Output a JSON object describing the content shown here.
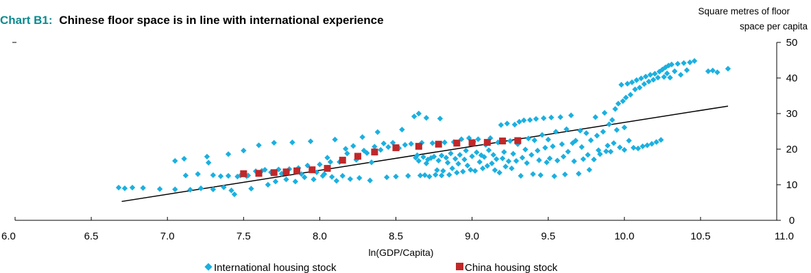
{
  "chart_data": {
    "type": "scatter",
    "title_prefix": "Chart B1:",
    "title": "Chinese floor space is in line with international experience",
    "ylabel_lines": [
      "Square metres of floor",
      "space per capita"
    ],
    "xlabel": "ln(GDP/Capita)",
    "xlim": [
      6.0,
      11.0
    ],
    "ylim": [
      0,
      50
    ],
    "x_ticks": [
      "6.0",
      "6.5",
      "7.0",
      "7.5",
      "8.0",
      "8.5",
      "9.0",
      "9.5",
      "10.0",
      "10.5",
      "11.0"
    ],
    "y_ticks": [
      "0",
      "10",
      "20",
      "30",
      "40",
      "50"
    ],
    "y_axis_side": "right",
    "grid": false,
    "legend_position": "bottom",
    "series": [
      {
        "name": "International housing stock",
        "marker": "diamond",
        "color": "#1bb0e0",
        "points": [
          [
            6.68,
            9.2
          ],
          [
            6.72,
            9.0
          ],
          [
            6.77,
            9.2
          ],
          [
            6.84,
            9.1
          ],
          [
            6.95,
            8.8
          ],
          [
            7.05,
            8.7
          ],
          [
            7.05,
            16.7
          ],
          [
            7.11,
            17.3
          ],
          [
            7.12,
            12.6
          ],
          [
            7.15,
            8.6
          ],
          [
            7.2,
            13.0
          ],
          [
            7.22,
            9.0
          ],
          [
            7.26,
            17.9
          ],
          [
            7.27,
            16.2
          ],
          [
            7.3,
            12.7
          ],
          [
            7.3,
            8.7
          ],
          [
            7.35,
            12.4
          ],
          [
            7.37,
            9.3
          ],
          [
            7.4,
            18.6
          ],
          [
            7.4,
            12.5
          ],
          [
            7.42,
            8.4
          ],
          [
            7.44,
            7.3
          ],
          [
            7.46,
            12.3
          ],
          [
            7.48,
            12.6
          ],
          [
            7.5,
            19.6
          ],
          [
            7.52,
            12.4
          ],
          [
            7.53,
            12.6
          ],
          [
            7.55,
            8.9
          ],
          [
            7.58,
            13.8
          ],
          [
            7.6,
            21.1
          ],
          [
            7.62,
            13.9
          ],
          [
            7.64,
            14.2
          ],
          [
            7.66,
            10.0
          ],
          [
            7.68,
            13.5
          ],
          [
            7.7,
            21.8
          ],
          [
            7.71,
            10.9
          ],
          [
            7.73,
            14.3
          ],
          [
            7.75,
            13.1
          ],
          [
            7.78,
            11.5
          ],
          [
            7.8,
            14.4
          ],
          [
            7.82,
            21.9
          ],
          [
            7.84,
            10.9
          ],
          [
            7.86,
            14.7
          ],
          [
            7.88,
            13.0
          ],
          [
            7.9,
            12.1
          ],
          [
            7.92,
            15.4
          ],
          [
            7.94,
            22.2
          ],
          [
            7.96,
            11.5
          ],
          [
            7.98,
            13.5
          ],
          [
            8.0,
            15.7
          ],
          [
            8.02,
            12.5
          ],
          [
            8.03,
            13.0
          ],
          [
            8.05,
            17.6
          ],
          [
            8.07,
            16.4
          ],
          [
            8.08,
            12.2
          ],
          [
            8.1,
            22.7
          ],
          [
            8.11,
            11.1
          ],
          [
            8.13,
            16.4
          ],
          [
            8.15,
            12.5
          ],
          [
            8.17,
            20.1
          ],
          [
            8.18,
            18.8
          ],
          [
            8.2,
            11.6
          ],
          [
            8.22,
            20.9
          ],
          [
            8.24,
            17.0
          ],
          [
            8.26,
            11.9
          ],
          [
            8.28,
            23.4
          ],
          [
            8.29,
            19.6
          ],
          [
            8.31,
            18.9
          ],
          [
            8.33,
            11.2
          ],
          [
            8.34,
            16.3
          ],
          [
            8.36,
            20.7
          ],
          [
            8.38,
            24.8
          ],
          [
            8.4,
            19.8
          ],
          [
            8.42,
            21.6
          ],
          [
            8.44,
            12.1
          ],
          [
            8.45,
            20.6
          ],
          [
            8.48,
            21.8
          ],
          [
            8.5,
            12.3
          ],
          [
            8.52,
            20.3
          ],
          [
            8.54,
            25.5
          ],
          [
            8.56,
            21.2
          ],
          [
            8.58,
            12.5
          ],
          [
            8.6,
            21.5
          ],
          [
            8.62,
            29.2
          ],
          [
            8.63,
            17.6
          ],
          [
            8.64,
            18.3
          ],
          [
            8.65,
            30.0
          ],
          [
            8.65,
            16.7
          ],
          [
            8.66,
            12.6
          ],
          [
            8.67,
            21.8
          ],
          [
            8.68,
            17.8
          ],
          [
            8.69,
            12.7
          ],
          [
            8.7,
            28.8
          ],
          [
            8.7,
            16.0
          ],
          [
            8.71,
            17.1
          ],
          [
            8.72,
            12.3
          ],
          [
            8.73,
            17.5
          ],
          [
            8.74,
            21.7
          ],
          [
            8.75,
            17.9
          ],
          [
            8.76,
            12.8
          ],
          [
            8.77,
            14.1
          ],
          [
            8.78,
            16.8
          ],
          [
            8.79,
            28.6
          ],
          [
            8.8,
            18.2
          ],
          [
            8.8,
            12.6
          ],
          [
            8.81,
            13.9
          ],
          [
            8.82,
            21.9
          ],
          [
            8.83,
            17.6
          ],
          [
            8.84,
            16.2
          ],
          [
            8.85,
            12.8
          ],
          [
            8.86,
            18.8
          ],
          [
            8.87,
            14.6
          ],
          [
            8.88,
            22.0
          ],
          [
            8.89,
            17.3
          ],
          [
            8.9,
            13.4
          ],
          [
            8.91,
            15.9
          ],
          [
            8.92,
            18.4
          ],
          [
            8.93,
            22.8
          ],
          [
            8.94,
            13.7
          ],
          [
            8.95,
            17.1
          ],
          [
            8.96,
            19.6
          ],
          [
            8.97,
            15.4
          ],
          [
            8.98,
            23.1
          ],
          [
            8.99,
            14.2
          ],
          [
            9.0,
            18.0
          ],
          [
            9.01,
            22.1
          ],
          [
            9.02,
            13.9
          ],
          [
            9.03,
            19.1
          ],
          [
            9.04,
            22.8
          ],
          [
            9.05,
            16.4
          ],
          [
            9.06,
            18.3
          ],
          [
            9.07,
            14.6
          ],
          [
            9.08,
            17.8
          ],
          [
            9.09,
            21.2
          ],
          [
            9.1,
            15.3
          ],
          [
            9.11,
            19.7
          ],
          [
            9.12,
            23.1
          ],
          [
            9.13,
            16.0
          ],
          [
            9.14,
            18.4
          ],
          [
            9.15,
            14.1
          ],
          [
            9.16,
            17.2
          ],
          [
            9.17,
            21.9
          ],
          [
            9.18,
            13.4
          ],
          [
            9.19,
            26.8
          ],
          [
            9.2,
            17.4
          ],
          [
            9.21,
            19.2
          ],
          [
            9.22,
            15.1
          ],
          [
            9.23,
            27.2
          ],
          [
            9.24,
            16.6
          ],
          [
            9.25,
            22.3
          ],
          [
            9.26,
            14.6
          ],
          [
            9.27,
            18.7
          ],
          [
            9.28,
            26.9
          ],
          [
            9.29,
            16.7
          ],
          [
            9.3,
            21.4
          ],
          [
            9.31,
            27.7
          ],
          [
            9.32,
            12.5
          ],
          [
            9.33,
            17.6
          ],
          [
            9.34,
            28.1
          ],
          [
            9.35,
            19.9
          ],
          [
            9.36,
            16.1
          ],
          [
            9.37,
            23.0
          ],
          [
            9.38,
            28.2
          ],
          [
            9.39,
            18.4
          ],
          [
            9.4,
            13.0
          ],
          [
            9.41,
            22.5
          ],
          [
            9.42,
            28.5
          ],
          [
            9.43,
            19.6
          ],
          [
            9.44,
            16.9
          ],
          [
            9.45,
            12.7
          ],
          [
            9.46,
            24.0
          ],
          [
            9.47,
            28.7
          ],
          [
            9.48,
            20.4
          ],
          [
            9.49,
            16.3
          ],
          [
            9.5,
            22.7
          ],
          [
            9.51,
            17.4
          ],
          [
            9.52,
            28.9
          ],
          [
            9.53,
            20.8
          ],
          [
            9.54,
            12.4
          ],
          [
            9.55,
            24.9
          ],
          [
            9.56,
            16.8
          ],
          [
            9.58,
            29.0
          ],
          [
            9.59,
            21.4
          ],
          [
            9.6,
            17.9
          ],
          [
            9.61,
            12.9
          ],
          [
            9.62,
            25.6
          ],
          [
            9.63,
            19.3
          ],
          [
            9.65,
            29.5
          ],
          [
            9.66,
            21.7
          ],
          [
            9.67,
            16.6
          ],
          [
            9.68,
            22.4
          ],
          [
            9.7,
            13.1
          ],
          [
            9.71,
            25.2
          ],
          [
            9.72,
            20.6
          ],
          [
            9.73,
            17.2
          ],
          [
            9.75,
            24.5
          ],
          [
            9.76,
            18.4
          ],
          [
            9.77,
            14.2
          ],
          [
            9.78,
            22.5
          ],
          [
            9.8,
            17.1
          ],
          [
            9.81,
            29.0
          ],
          [
            9.82,
            23.8
          ],
          [
            9.83,
            19.7
          ],
          [
            9.84,
            18.6
          ],
          [
            9.86,
            24.9
          ],
          [
            9.87,
            30.2
          ],
          [
            9.88,
            19.4
          ],
          [
            9.89,
            21.0
          ],
          [
            9.9,
            27.0
          ],
          [
            9.91,
            19.3
          ],
          [
            9.92,
            28.2
          ],
          [
            9.93,
            21.7
          ],
          [
            9.94,
            31.3
          ],
          [
            9.95,
            25.4
          ],
          [
            9.96,
            32.8
          ],
          [
            9.97,
            20.5
          ],
          [
            9.98,
            38.1
          ],
          [
            9.99,
            33.5
          ],
          [
            10.0,
            26.1
          ],
          [
            10.0,
            19.8
          ],
          [
            10.01,
            34.5
          ],
          [
            10.02,
            38.4
          ],
          [
            10.03,
            22.4
          ],
          [
            10.04,
            35.3
          ],
          [
            10.05,
            38.8
          ],
          [
            10.06,
            20.4
          ],
          [
            10.07,
            36.8
          ],
          [
            10.08,
            39.4
          ],
          [
            10.09,
            20.2
          ],
          [
            10.1,
            37.3
          ],
          [
            10.11,
            39.9
          ],
          [
            10.12,
            20.8
          ],
          [
            10.13,
            38.3
          ],
          [
            10.14,
            40.4
          ],
          [
            10.15,
            21.1
          ],
          [
            10.16,
            39.0
          ],
          [
            10.17,
            40.9
          ],
          [
            10.18,
            21.5
          ],
          [
            10.19,
            39.5
          ],
          [
            10.2,
            41.2
          ],
          [
            10.21,
            22.0
          ],
          [
            10.22,
            40.1
          ],
          [
            10.23,
            41.8
          ],
          [
            10.24,
            22.6
          ],
          [
            10.25,
            42.4
          ],
          [
            10.26,
            40.3
          ],
          [
            10.27,
            43.0
          ],
          [
            10.28,
            41.3
          ],
          [
            10.29,
            43.5
          ],
          [
            10.3,
            40.1
          ],
          [
            10.31,
            43.8
          ],
          [
            10.33,
            41.9
          ],
          [
            10.35,
            44.0
          ],
          [
            10.37,
            40.9
          ],
          [
            10.39,
            44.2
          ],
          [
            10.41,
            42.2
          ],
          [
            10.43,
            44.4
          ],
          [
            10.46,
            44.8
          ],
          [
            10.55,
            41.9
          ],
          [
            10.58,
            42.1
          ],
          [
            10.61,
            41.6
          ],
          [
            10.68,
            42.6
          ]
        ]
      },
      {
        "name": "China housing stock",
        "marker": "square",
        "color": "#c0282a",
        "points": [
          [
            7.5,
            13.1
          ],
          [
            7.6,
            13.2
          ],
          [
            7.7,
            13.4
          ],
          [
            7.78,
            13.6
          ],
          [
            7.85,
            13.9
          ],
          [
            7.95,
            14.2
          ],
          [
            8.05,
            14.6
          ],
          [
            8.15,
            16.9
          ],
          [
            8.25,
            18.0
          ],
          [
            8.36,
            19.2
          ],
          [
            8.5,
            20.4
          ],
          [
            8.65,
            20.8
          ],
          [
            8.78,
            21.4
          ],
          [
            8.9,
            21.7
          ],
          [
            9.0,
            21.8
          ],
          [
            9.1,
            21.9
          ],
          [
            9.2,
            22.3
          ],
          [
            9.3,
            22.4
          ]
        ]
      }
    ],
    "trend_line": {
      "x": [
        6.7,
        10.68
      ],
      "y": [
        5.3,
        32.1
      ],
      "color": "#000000"
    }
  }
}
